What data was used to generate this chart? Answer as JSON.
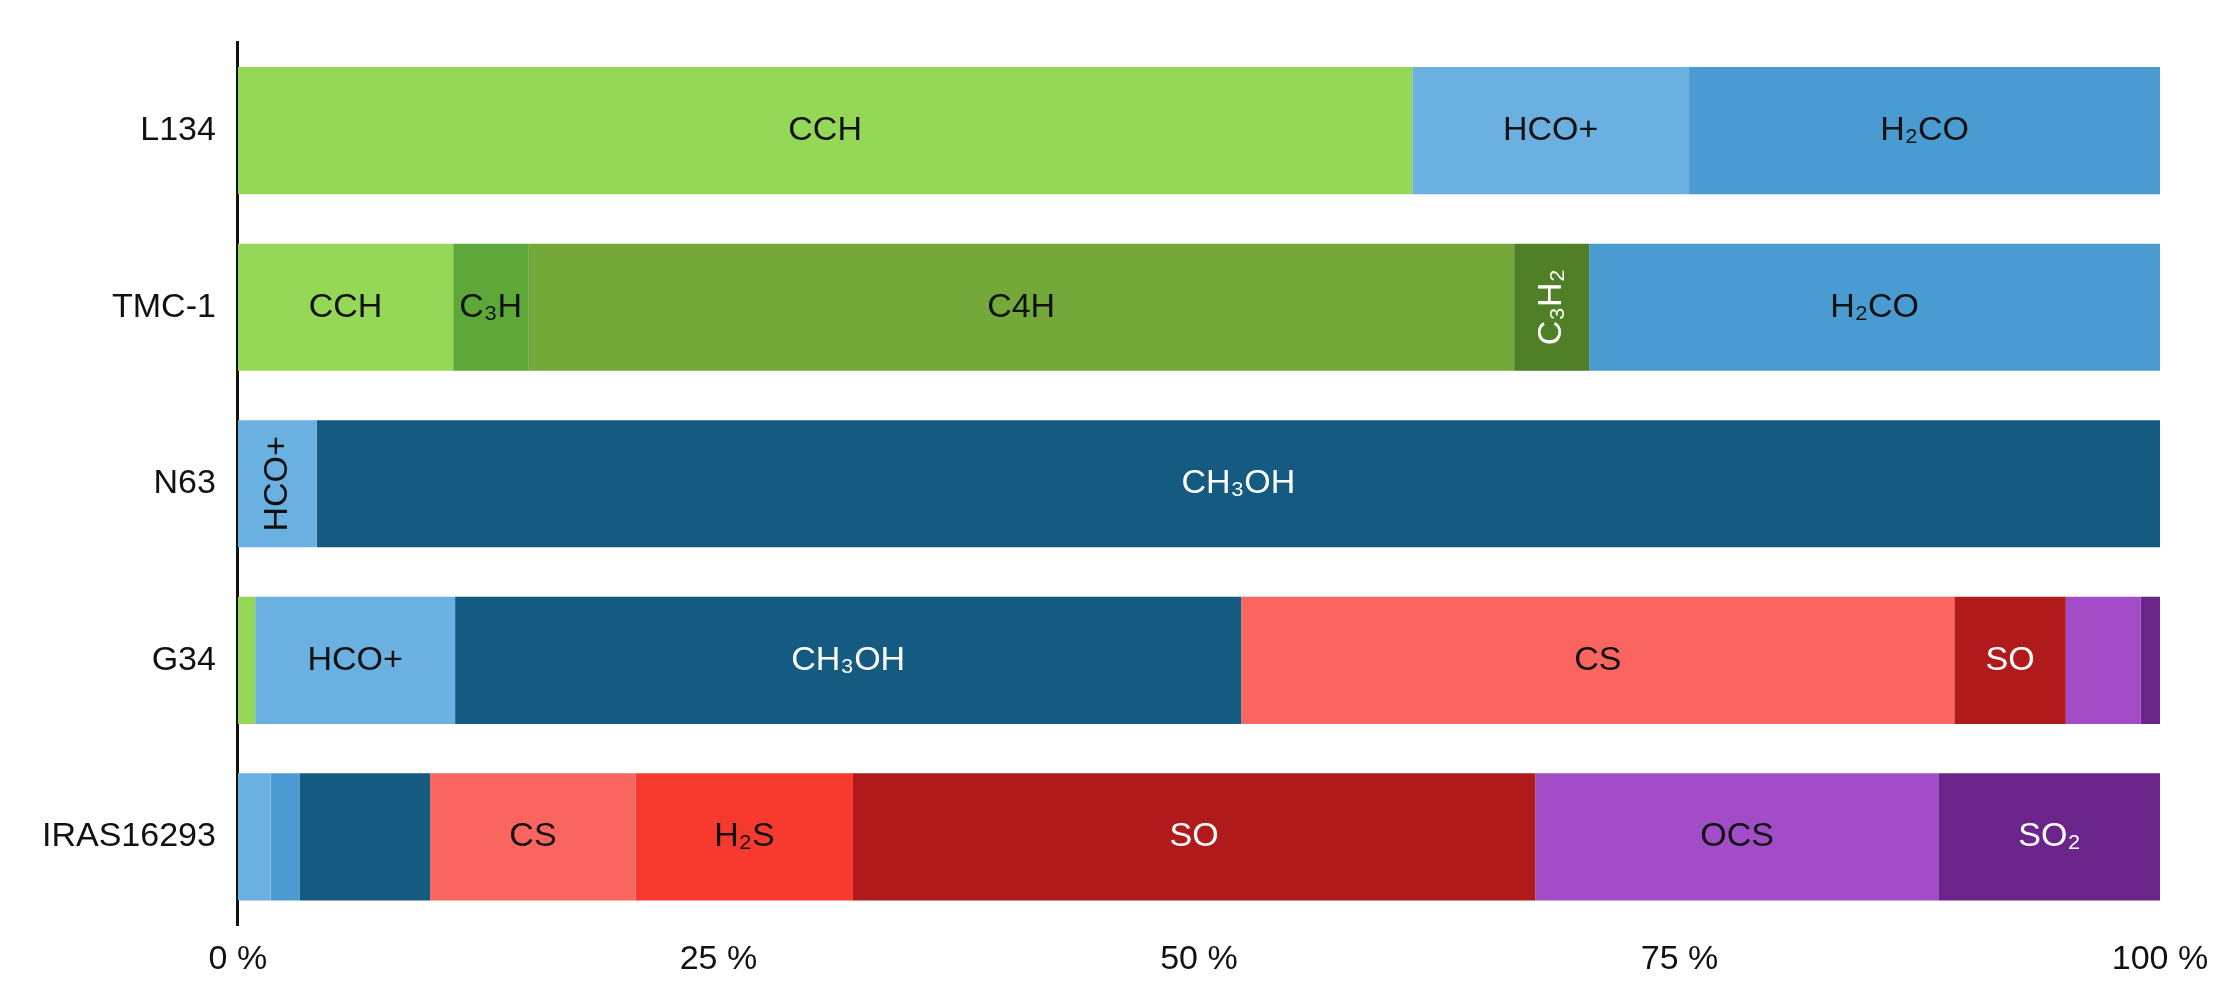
{
  "chart_data": {
    "type": "bar",
    "orientation": "horizontal",
    "stacked": true,
    "legend": false,
    "grid": false,
    "categories": [
      "L134",
      "TMC-1",
      "N63",
      "G34",
      "IRAS16293"
    ],
    "xlim": [
      0,
      100
    ],
    "xticks": [
      {
        "value": 0,
        "label": "0 %"
      },
      {
        "value": 25,
        "label": "25 %"
      },
      {
        "value": 50,
        "label": "50 %"
      },
      {
        "value": 75,
        "label": "75 %"
      },
      {
        "value": 100,
        "label": "100 %"
      }
    ],
    "series": [
      {
        "name": "CCH",
        "color": "#95d857",
        "values": [
          61.1,
          11.2,
          null,
          null,
          null
        ]
      },
      {
        "color": "#95d857",
        "values": [
          null,
          null,
          null,
          0.9,
          null
        ]
      },
      {
        "name": "C₃H",
        "color": "#5ea83a",
        "values": [
          null,
          3.9,
          null,
          null,
          null
        ]
      },
      {
        "name": "C4H",
        "color": "#74a93a",
        "values": [
          null,
          51.3,
          null,
          null,
          null
        ]
      },
      {
        "name": "C₃H₂",
        "color": "#4f7f26",
        "values": [
          null,
          3.9,
          null,
          null,
          null
        ]
      },
      {
        "name": "HCO+",
        "color": "#6ab0e0",
        "values": [
          14.4,
          null,
          4.1,
          10.4,
          null
        ]
      },
      {
        "color": "#6ab0e0",
        "values": [
          null,
          null,
          null,
          null,
          1.7
        ]
      },
      {
        "name": "H₂CO",
        "color": "#4b9bd3",
        "values": [
          24.5,
          29.7,
          null,
          null,
          null
        ]
      },
      {
        "color": "#4b9bd3",
        "values": [
          null,
          null,
          null,
          null,
          1.5
        ]
      },
      {
        "name": "CH₃OH",
        "color": "#155a80",
        "values": [
          null,
          null,
          95.9,
          40.9,
          null
        ]
      },
      {
        "color": "#155a80",
        "values": [
          null,
          null,
          null,
          null,
          6.8
        ]
      },
      {
        "name": "CS",
        "color": "#fb6560",
        "values": [
          null,
          null,
          null,
          37.1,
          10.7
        ]
      },
      {
        "name": "H₂S",
        "color": "#f83a2e",
        "values": [
          null,
          null,
          null,
          null,
          11.3
        ]
      },
      {
        "name": "SO",
        "color": "#b01a1a",
        "values": [
          null,
          null,
          null,
          5.8,
          35.5
        ]
      },
      {
        "name": "OCS",
        "color": "#a34cc8",
        "values": [
          null,
          null,
          null,
          null,
          21.0
        ]
      },
      {
        "color": "#a34cc8",
        "values": [
          null,
          null,
          null,
          3.9,
          null
        ]
      },
      {
        "name": "SO₂",
        "color": "#6b2489",
        "values": [
          null,
          null,
          null,
          null,
          11.5
        ]
      },
      {
        "color": "#6b2489",
        "values": [
          null,
          null,
          null,
          1.0,
          null
        ]
      }
    ]
  }
}
